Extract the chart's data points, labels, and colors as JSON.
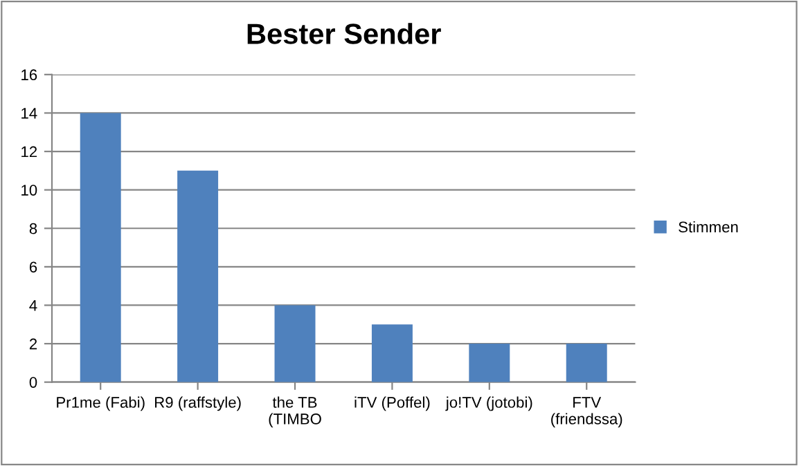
{
  "chart_data": {
    "type": "bar",
    "title": "Bester Sender",
    "categories": [
      "Pr1me (Fabi)",
      "R9 (raffstyle)",
      "the TB\n(TIMBO",
      "iTV (Poffel)",
      "jo!TV (jotobi)",
      "FTV\n(friendssa)"
    ],
    "series": [
      {
        "name": "Stimmen",
        "color": "#4f81bd",
        "values": [
          14,
          11,
          4,
          3,
          2,
          2
        ]
      }
    ],
    "ylim": [
      0,
      16
    ],
    "yticks": [
      0,
      2,
      4,
      6,
      8,
      10,
      12,
      14,
      16
    ],
    "grid": "y",
    "legend": "right"
  }
}
